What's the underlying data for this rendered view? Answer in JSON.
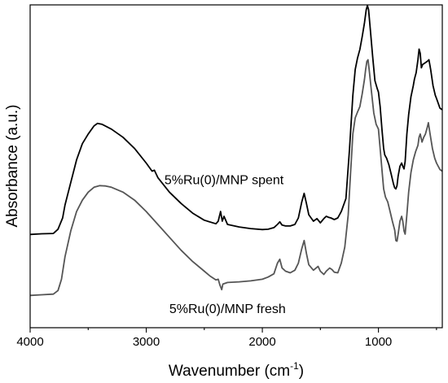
{
  "chart_data": {
    "type": "line",
    "title": "",
    "xlabel": "Wavenumber (cm",
    "xlabel_sup": "-1",
    "xlabel_close": ")",
    "ylabel": "Absorbance (a.u.)",
    "x_reversed": true,
    "xlim": [
      4000,
      450
    ],
    "ylim": [
      0,
      1
    ],
    "xticks": [
      4000,
      3000,
      2000,
      1000
    ],
    "xtick_labels": [
      "4000",
      "3000",
      "2000",
      "1000"
    ],
    "show_yticks": false,
    "grid": false,
    "legend": "none",
    "series": [
      {
        "name": "5%Ru(0)/MNP spent",
        "color": "#000000",
        "points": [
          [
            4000,
            0.289
          ],
          [
            3900,
            0.291
          ],
          [
            3800,
            0.292
          ],
          [
            3760,
            0.305
          ],
          [
            3720,
            0.34
          ],
          [
            3700,
            0.38
          ],
          [
            3650,
            0.45
          ],
          [
            3600,
            0.52
          ],
          [
            3550,
            0.57
          ],
          [
            3500,
            0.6
          ],
          [
            3450,
            0.625
          ],
          [
            3420,
            0.633
          ],
          [
            3380,
            0.63
          ],
          [
            3300,
            0.615
          ],
          [
            3200,
            0.59
          ],
          [
            3100,
            0.555
          ],
          [
            3000,
            0.51
          ],
          [
            2950,
            0.485
          ],
          [
            2930,
            0.488
          ],
          [
            2900,
            0.465
          ],
          [
            2800,
            0.42
          ],
          [
            2700,
            0.385
          ],
          [
            2600,
            0.355
          ],
          [
            2500,
            0.333
          ],
          [
            2400,
            0.322
          ],
          [
            2380,
            0.33
          ],
          [
            2360,
            0.36
          ],
          [
            2345,
            0.33
          ],
          [
            2330,
            0.345
          ],
          [
            2300,
            0.32
          ],
          [
            2200,
            0.312
          ],
          [
            2100,
            0.307
          ],
          [
            2000,
            0.304
          ],
          [
            1950,
            0.305
          ],
          [
            1900,
            0.31
          ],
          [
            1870,
            0.32
          ],
          [
            1850,
            0.328
          ],
          [
            1830,
            0.318
          ],
          [
            1800,
            0.315
          ],
          [
            1760,
            0.315
          ],
          [
            1720,
            0.32
          ],
          [
            1690,
            0.34
          ],
          [
            1660,
            0.39
          ],
          [
            1640,
            0.416
          ],
          [
            1620,
            0.385
          ],
          [
            1600,
            0.35
          ],
          [
            1560,
            0.33
          ],
          [
            1530,
            0.338
          ],
          [
            1500,
            0.325
          ],
          [
            1470,
            0.338
          ],
          [
            1450,
            0.345
          ],
          [
            1430,
            0.342
          ],
          [
            1410,
            0.34
          ],
          [
            1380,
            0.335
          ],
          [
            1350,
            0.34
          ],
          [
            1320,
            0.36
          ],
          [
            1280,
            0.4
          ],
          [
            1250,
            0.55
          ],
          [
            1220,
            0.72
          ],
          [
            1200,
            0.8
          ],
          [
            1180,
            0.835
          ],
          [
            1160,
            0.862
          ],
          [
            1140,
            0.902
          ],
          [
            1120,
            0.945
          ],
          [
            1105,
            0.985
          ],
          [
            1095,
            0.998
          ],
          [
            1085,
            0.985
          ],
          [
            1070,
            0.925
          ],
          [
            1050,
            0.84
          ],
          [
            1030,
            0.765
          ],
          [
            1010,
            0.74
          ],
          [
            1000,
            0.73
          ],
          [
            985,
            0.685
          ],
          [
            970,
            0.615
          ],
          [
            955,
            0.555
          ],
          [
            945,
            0.535
          ],
          [
            930,
            0.525
          ],
          [
            910,
            0.505
          ],
          [
            890,
            0.475
          ],
          [
            870,
            0.445
          ],
          [
            860,
            0.433
          ],
          [
            850,
            0.43
          ],
          [
            840,
            0.44
          ],
          [
            830,
            0.47
          ],
          [
            815,
            0.5
          ],
          [
            800,
            0.51
          ],
          [
            790,
            0.5
          ],
          [
            780,
            0.492
          ],
          [
            770,
            0.515
          ],
          [
            755,
            0.6
          ],
          [
            740,
            0.66
          ],
          [
            720,
            0.715
          ],
          [
            700,
            0.75
          ],
          [
            690,
            0.77
          ],
          [
            675,
            0.79
          ],
          [
            660,
            0.83
          ],
          [
            650,
            0.863
          ],
          [
            640,
            0.85
          ],
          [
            630,
            0.805
          ],
          [
            620,
            0.815
          ],
          [
            600,
            0.82
          ],
          [
            580,
            0.825
          ],
          [
            565,
            0.83
          ],
          [
            550,
            0.8
          ],
          [
            530,
            0.75
          ],
          [
            510,
            0.72
          ],
          [
            500,
            0.71
          ],
          [
            470,
            0.68
          ],
          [
            450,
            0.675
          ]
        ]
      },
      {
        "name": "5%Ru(0)/MNP fresh",
        "color": "#555555",
        "points": [
          [
            4000,
            0.1
          ],
          [
            3900,
            0.102
          ],
          [
            3800,
            0.104
          ],
          [
            3760,
            0.115
          ],
          [
            3730,
            0.15
          ],
          [
            3700,
            0.22
          ],
          [
            3650,
            0.3
          ],
          [
            3600,
            0.36
          ],
          [
            3550,
            0.395
          ],
          [
            3500,
            0.42
          ],
          [
            3450,
            0.435
          ],
          [
            3400,
            0.44
          ],
          [
            3350,
            0.439
          ],
          [
            3300,
            0.435
          ],
          [
            3200,
            0.42
          ],
          [
            3100,
            0.395
          ],
          [
            3000,
            0.36
          ],
          [
            2900,
            0.32
          ],
          [
            2800,
            0.28
          ],
          [
            2700,
            0.24
          ],
          [
            2600,
            0.205
          ],
          [
            2500,
            0.175
          ],
          [
            2450,
            0.16
          ],
          [
            2400,
            0.148
          ],
          [
            2380,
            0.15
          ],
          [
            2365,
            0.132
          ],
          [
            2350,
            0.118
          ],
          [
            2340,
            0.135
          ],
          [
            2300,
            0.14
          ],
          [
            2200,
            0.142
          ],
          [
            2100,
            0.145
          ],
          [
            2000,
            0.15
          ],
          [
            1950,
            0.157
          ],
          [
            1900,
            0.167
          ],
          [
            1870,
            0.2
          ],
          [
            1850,
            0.212
          ],
          [
            1830,
            0.185
          ],
          [
            1800,
            0.175
          ],
          [
            1760,
            0.17
          ],
          [
            1720,
            0.178
          ],
          [
            1690,
            0.2
          ],
          [
            1660,
            0.245
          ],
          [
            1640,
            0.27
          ],
          [
            1620,
            0.23
          ],
          [
            1600,
            0.195
          ],
          [
            1560,
            0.178
          ],
          [
            1520,
            0.19
          ],
          [
            1500,
            0.175
          ],
          [
            1470,
            0.165
          ],
          [
            1450,
            0.175
          ],
          [
            1420,
            0.185
          ],
          [
            1400,
            0.18
          ],
          [
            1380,
            0.172
          ],
          [
            1350,
            0.17
          ],
          [
            1320,
            0.2
          ],
          [
            1290,
            0.25
          ],
          [
            1260,
            0.35
          ],
          [
            1240,
            0.48
          ],
          [
            1220,
            0.6
          ],
          [
            1200,
            0.65
          ],
          [
            1180,
            0.668
          ],
          [
            1160,
            0.685
          ],
          [
            1140,
            0.725
          ],
          [
            1120,
            0.77
          ],
          [
            1110,
            0.8
          ],
          [
            1100,
            0.825
          ],
          [
            1090,
            0.83
          ],
          [
            1080,
            0.8
          ],
          [
            1060,
            0.73
          ],
          [
            1040,
            0.665
          ],
          [
            1020,
            0.63
          ],
          [
            1000,
            0.615
          ],
          [
            985,
            0.555
          ],
          [
            970,
            0.49
          ],
          [
            955,
            0.43
          ],
          [
            940,
            0.405
          ],
          [
            920,
            0.39
          ],
          [
            900,
            0.36
          ],
          [
            880,
            0.33
          ],
          [
            860,
            0.302
          ],
          [
            850,
            0.27
          ],
          [
            840,
            0.268
          ],
          [
            830,
            0.29
          ],
          [
            815,
            0.33
          ],
          [
            800,
            0.345
          ],
          [
            790,
            0.33
          ],
          [
            780,
            0.3
          ],
          [
            770,
            0.29
          ],
          [
            755,
            0.35
          ],
          [
            740,
            0.42
          ],
          [
            720,
            0.48
          ],
          [
            700,
            0.52
          ],
          [
            680,
            0.545
          ],
          [
            660,
            0.565
          ],
          [
            650,
            0.59
          ],
          [
            640,
            0.6
          ],
          [
            625,
            0.575
          ],
          [
            610,
            0.59
          ],
          [
            595,
            0.6
          ],
          [
            580,
            0.62
          ],
          [
            570,
            0.635
          ],
          [
            555,
            0.6
          ],
          [
            535,
            0.555
          ],
          [
            515,
            0.525
          ],
          [
            500,
            0.51
          ],
          [
            470,
            0.49
          ],
          [
            450,
            0.485
          ]
        ]
      }
    ],
    "annotations": [
      {
        "text": "5%Ru(0)/MNP spent",
        "x": 2330,
        "y": 0.445
      },
      {
        "text": "5%Ru(0)/MNP fresh",
        "x": 2300,
        "y": 0.045
      }
    ]
  }
}
